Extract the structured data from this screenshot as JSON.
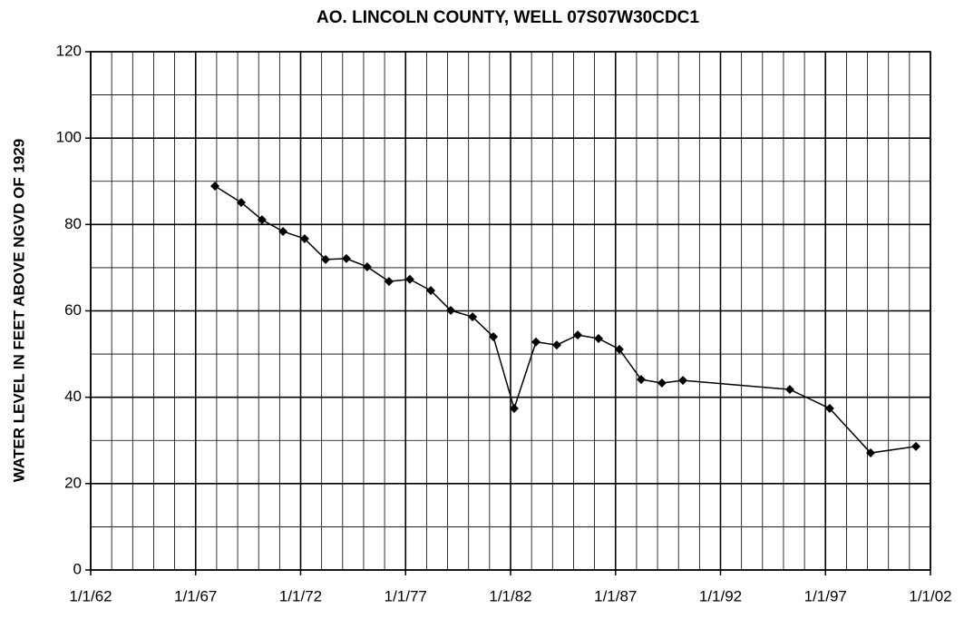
{
  "chart_data": {
    "type": "line",
    "title": "AO. LINCOLN COUNTY, WELL 07S07W30CDC1",
    "y_label": "WATER LEVEL  IN  FEET ABOVE NGVD OF 1929",
    "x": [
      1967.92,
      1969.17,
      1970.16,
      1971.16,
      1972.19,
      1973.19,
      1974.18,
      1975.17,
      1976.21,
      1977.2,
      1978.2,
      1979.15,
      1980.19,
      1981.18,
      1982.17,
      1983.21,
      1984.2,
      1985.2,
      1986.19,
      1987.18,
      1988.22,
      1989.21,
      1990.21,
      1995.3,
      1997.2,
      1999.15,
      2001.31
    ],
    "series": [
      {
        "color": "#000000",
        "values": [
          88.9,
          85.1,
          81.1,
          78.4,
          76.7,
          71.9,
          72.1,
          70.2,
          66.8,
          67.3,
          64.7,
          60.1,
          58.6,
          54.0,
          37.4,
          52.8,
          52.1,
          54.4,
          53.6,
          51.1,
          44.1,
          43.3,
          43.9,
          41.8,
          37.4,
          27.1,
          28.6
        ]
      }
    ],
    "xlim": [
      1962,
      2002
    ],
    "xticks": [
      {
        "value": 1962,
        "label": "1/1/62"
      },
      {
        "value": 1967,
        "label": "1/1/67"
      },
      {
        "value": 1972,
        "label": "1/1/72"
      },
      {
        "value": 1977,
        "label": "1/1/77"
      },
      {
        "value": 1982,
        "label": "1/1/82"
      },
      {
        "value": 1987,
        "label": "1/1/87"
      },
      {
        "value": 1992,
        "label": "1/1/92"
      },
      {
        "value": 1997,
        "label": "1/1/97"
      },
      {
        "value": 2002,
        "label": "1/1/02"
      }
    ],
    "minor_xticks": [
      1963,
      1964,
      1965,
      1966,
      1968,
      1969,
      1970,
      1971,
      1973,
      1974,
      1975,
      1976,
      1978,
      1979,
      1980,
      1981,
      1983,
      1984,
      1985,
      1986,
      1988,
      1989,
      1990,
      1991,
      1993,
      1994,
      1995,
      1996,
      1998,
      1999,
      2000,
      2001
    ],
    "ylim": [
      0,
      120
    ],
    "yticks": [
      0,
      20,
      40,
      60,
      80,
      100,
      120
    ],
    "minor_yticks": [
      10,
      30,
      50,
      70,
      90,
      110
    ],
    "grid": true
  }
}
